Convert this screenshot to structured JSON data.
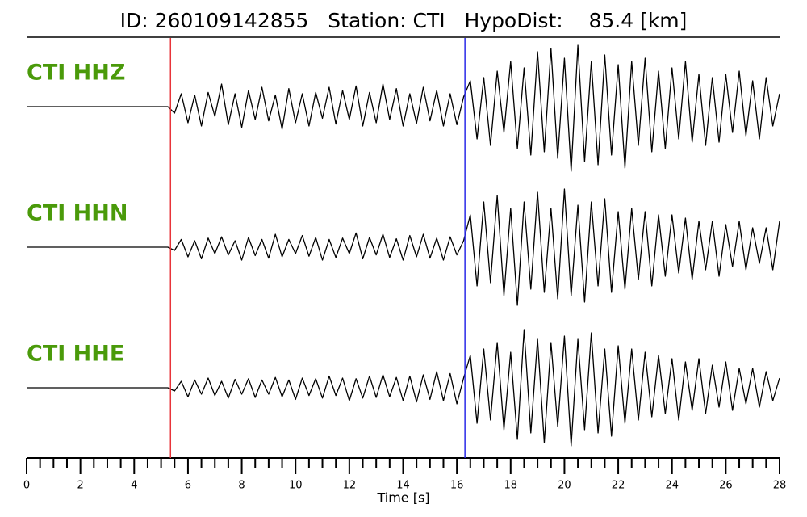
{
  "chart_data": {
    "type": "seismogram",
    "title": "ID: 260109142855   Station: CTI   HypoDist:    85.4 [km]",
    "xlabel": "Time [s]",
    "xlim": [
      0,
      28
    ],
    "xticks": [
      0,
      2,
      4,
      6,
      8,
      10,
      12,
      14,
      16,
      18,
      20,
      22,
      24,
      26,
      28
    ],
    "xticks_minor": [
      0.5,
      1,
      1.5,
      2.5,
      3,
      3.5,
      4.5,
      5,
      5.5,
      6.5,
      7,
      7.5,
      8.5,
      9,
      9.5,
      10.5,
      11,
      11.5,
      12.5,
      13,
      13.5,
      14.5,
      15,
      15.5,
      16.5,
      17,
      17.5,
      18.5,
      19,
      19.5,
      20.5,
      21,
      21.5,
      22.5,
      23,
      23.5,
      24.5,
      25,
      25.5,
      26.5,
      27,
      27.5
    ],
    "ylim": [
      -1,
      1
    ],
    "picks": [
      {
        "value": 5.35,
        "color": "#e8343a"
      },
      {
        "value": 16.3,
        "color": "#2a2ae8"
      }
    ],
    "label_color": "#4a9a0a",
    "line_color": "#000000",
    "x": [
      0,
      0.25,
      0.5,
      0.75,
      1,
      1.25,
      1.5,
      1.75,
      2,
      2.25,
      2.5,
      2.75,
      3,
      3.25,
      3.5,
      3.75,
      4,
      4.25,
      4.5,
      4.75,
      5,
      5.25,
      5.5,
      5.75,
      6,
      6.25,
      6.5,
      6.75,
      7,
      7.25,
      7.5,
      7.75,
      8,
      8.25,
      8.5,
      8.75,
      9,
      9.25,
      9.5,
      9.75,
      10,
      10.25,
      10.5,
      10.75,
      11,
      11.25,
      11.5,
      11.75,
      12,
      12.25,
      12.5,
      12.75,
      13,
      13.25,
      13.5,
      13.75,
      14,
      14.25,
      14.5,
      14.75,
      15,
      15.25,
      15.5,
      15.75,
      16,
      16.25,
      16.5,
      16.75,
      17,
      17.25,
      17.5,
      17.75,
      18,
      18.25,
      18.5,
      18.75,
      19,
      19.25,
      19.5,
      19.75,
      20,
      20.25,
      20.5,
      20.75,
      21,
      21.25,
      21.5,
      21.75,
      22,
      22.25,
      22.5,
      22.75,
      23,
      23.25,
      23.5,
      23.75,
      24,
      24.25,
      24.5,
      24.75,
      25,
      25.25,
      25.5,
      25.75,
      26,
      26.25,
      26.5,
      26.75,
      27,
      27.25,
      27.5,
      27.75,
      28
    ],
    "series": [
      {
        "name": "CTI HHZ",
        "values": [
          0,
          0,
          0,
          0,
          0,
          0,
          0,
          0,
          0,
          0,
          0,
          0,
          0,
          0,
          0,
          0,
          0,
          0,
          0,
          0,
          0,
          0,
          -0.1,
          0.2,
          -0.25,
          0.18,
          -0.3,
          0.22,
          -0.15,
          0.35,
          -0.28,
          0.2,
          -0.32,
          0.25,
          -0.2,
          0.3,
          -0.22,
          0.18,
          -0.35,
          0.28,
          -0.25,
          0.2,
          -0.3,
          0.22,
          -0.18,
          0.3,
          -0.27,
          0.25,
          -0.2,
          0.32,
          -0.3,
          0.22,
          -0.25,
          0.35,
          -0.2,
          0.28,
          -0.3,
          0.2,
          -0.26,
          0.3,
          -0.22,
          0.25,
          -0.3,
          0.2,
          -0.28,
          0.15,
          0.4,
          -0.5,
          0.45,
          -0.6,
          0.55,
          -0.4,
          0.7,
          -0.65,
          0.6,
          -0.75,
          0.85,
          -0.7,
          0.9,
          -0.8,
          0.75,
          -1.0,
          0.95,
          -0.85,
          0.7,
          -0.9,
          0.8,
          -0.75,
          0.65,
          -0.95,
          0.7,
          -0.6,
          0.75,
          -0.7,
          0.55,
          -0.65,
          0.6,
          -0.5,
          0.7,
          -0.55,
          0.5,
          -0.6,
          0.45,
          -0.55,
          0.5,
          -0.4,
          0.55,
          -0.45,
          0.4,
          -0.5,
          0.45,
          -0.3,
          0.2
        ]
      },
      {
        "name": "CTI HHN",
        "values": [
          0,
          0,
          0,
          0,
          0,
          0,
          0,
          0,
          0,
          0,
          0,
          0,
          0,
          0,
          0,
          0,
          0,
          0,
          0,
          0,
          0,
          0,
          -0.05,
          0.12,
          -0.15,
          0.1,
          -0.18,
          0.14,
          -0.1,
          0.16,
          -0.12,
          0.1,
          -0.2,
          0.15,
          -0.13,
          0.12,
          -0.17,
          0.2,
          -0.15,
          0.12,
          -0.1,
          0.18,
          -0.14,
          0.15,
          -0.2,
          0.12,
          -0.16,
          0.14,
          -0.1,
          0.22,
          -0.18,
          0.15,
          -0.12,
          0.2,
          -0.16,
          0.13,
          -0.2,
          0.18,
          -0.15,
          0.2,
          -0.17,
          0.14,
          -0.2,
          0.16,
          -0.12,
          0.1,
          0.5,
          -0.6,
          0.7,
          -0.55,
          0.8,
          -0.75,
          0.6,
          -0.9,
          0.7,
          -0.65,
          0.85,
          -0.7,
          0.6,
          -0.8,
          0.9,
          -0.75,
          0.65,
          -0.85,
          0.7,
          -0.6,
          0.75,
          -0.7,
          0.55,
          -0.65,
          0.6,
          -0.5,
          0.55,
          -0.6,
          0.5,
          -0.45,
          0.5,
          -0.4,
          0.45,
          -0.5,
          0.4,
          -0.35,
          0.4,
          -0.45,
          0.35,
          -0.3,
          0.4,
          -0.35,
          0.3,
          -0.25,
          0.3,
          -0.35,
          0.4
        ]
      },
      {
        "name": "CTI HHE",
        "values": [
          0,
          0,
          0,
          0,
          0,
          0,
          0,
          0,
          0,
          0,
          0,
          0,
          0,
          0,
          0,
          0,
          0,
          0,
          0,
          0,
          0,
          0,
          -0.05,
          0.1,
          -0.14,
          0.12,
          -0.1,
          0.15,
          -0.12,
          0.1,
          -0.16,
          0.13,
          -0.1,
          0.14,
          -0.15,
          0.12,
          -0.1,
          0.16,
          -0.14,
          0.12,
          -0.18,
          0.15,
          -0.12,
          0.14,
          -0.16,
          0.18,
          -0.12,
          0.15,
          -0.2,
          0.14,
          -0.16,
          0.18,
          -0.15,
          0.2,
          -0.14,
          0.16,
          -0.2,
          0.18,
          -0.22,
          0.2,
          -0.18,
          0.25,
          -0.2,
          0.22,
          -0.25,
          0.15,
          0.5,
          -0.55,
          0.6,
          -0.5,
          0.7,
          -0.65,
          0.55,
          -0.8,
          0.9,
          -0.7,
          0.75,
          -0.85,
          0.7,
          -0.6,
          0.8,
          -0.9,
          0.75,
          -0.65,
          0.85,
          -0.7,
          0.6,
          -0.75,
          0.65,
          -0.55,
          0.6,
          -0.5,
          0.55,
          -0.45,
          0.5,
          -0.4,
          0.45,
          -0.5,
          0.4,
          -0.35,
          0.45,
          -0.4,
          0.35,
          -0.3,
          0.4,
          -0.35,
          0.3,
          -0.25,
          0.3,
          -0.3,
          0.25,
          -0.2,
          0.15
        ]
      }
    ]
  }
}
